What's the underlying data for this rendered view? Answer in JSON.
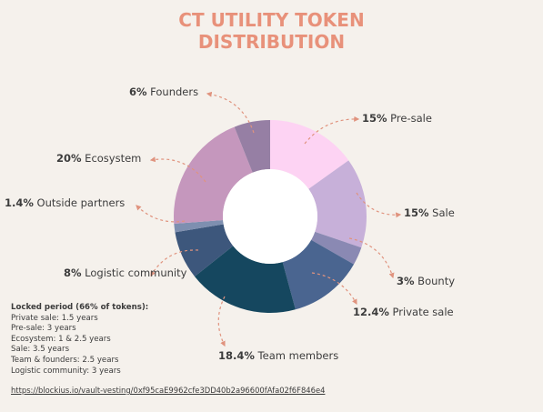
{
  "title": {
    "line1": "CT UTILITY TOKEN",
    "line2": "DISTRIBUTION"
  },
  "chart_data": {
    "type": "pie",
    "variant": "donut",
    "title": "CT UTILITY TOKEN DISTRIBUTION",
    "slices": [
      {
        "label": "Pre-sale",
        "value": 15,
        "value_label": "15%",
        "color": "#fdd3f3"
      },
      {
        "label": "Sale",
        "value": 15,
        "value_label": "15%",
        "color": "#c7b0d9"
      },
      {
        "label": "Bounty",
        "value": 3,
        "value_label": "3%",
        "color": "#8a89b3"
      },
      {
        "label": "Private sale",
        "value": 12.4,
        "value_label": "12.4%",
        "color": "#4a6590"
      },
      {
        "label": "Team members",
        "value": 18.4,
        "value_label": "18.4%",
        "color": "#15475f"
      },
      {
        "label": "Logistic community",
        "value": 8,
        "value_label": "8%",
        "color": "#3d577c"
      },
      {
        "label": "Outside partners",
        "value": 1.4,
        "value_label": "1.4%",
        "color": "#7e8fb0"
      },
      {
        "label": "Ecosystem",
        "value": 20,
        "value_label": "20%",
        "color": "#c597bd"
      },
      {
        "label": "Founders",
        "value": 6,
        "value_label": "6%",
        "color": "#967fa4"
      }
    ]
  },
  "locked": {
    "title": "Locked period (66% of tokens):",
    "lines": [
      "Private sale: 1.5 years",
      "Pre-sale: 3 years",
      "Ecosystem: 1 & 2.5 years",
      "Sale: 3.5 years",
      "Team & founders: 2.5 years",
      "Logistic community: 3 years"
    ]
  },
  "link": {
    "text": "https://blockius.io/vault-vesting/0xf95caE9962cfe3DD40b2a96600fAfa02f6F846e4"
  },
  "colors": {
    "title": "#e8917a",
    "arrow": "#e0937e",
    "text": "#3c3c3c",
    "background": "#f5f1ec"
  }
}
